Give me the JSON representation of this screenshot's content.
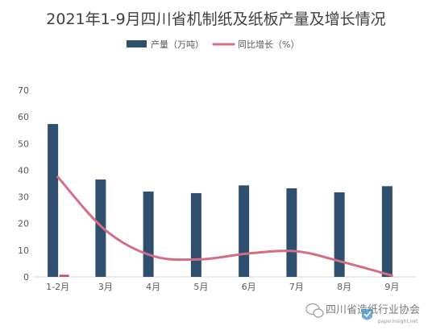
{
  "chart_data": {
    "type": "bar",
    "title": "2021年1-9月四川省机制纸及纸板产量及增长情况",
    "categories": [
      "1-2月",
      "3月",
      "4月",
      "5月",
      "6月",
      "7月",
      "8月",
      "9月"
    ],
    "ylim": [
      0,
      70
    ],
    "yticks": [
      0,
      10,
      20,
      30,
      40,
      50,
      60,
      70
    ],
    "grid": false,
    "legend_position": "top",
    "series": [
      {
        "name": "产量（万吨）",
        "kind": "bar",
        "color": "#2e4f6e",
        "values": [
          57.3,
          36.5,
          32.0,
          31.4,
          34.3,
          33.2,
          31.7,
          34.0
        ]
      },
      {
        "name": "同比增长（%）",
        "kind": "line",
        "smooth": true,
        "color": "#d36e84",
        "values": [
          37.5,
          17.5,
          7.8,
          6.6,
          8.8,
          9.6,
          5.4,
          0.5
        ]
      }
    ],
    "small_marker": {
      "category": "1-2月",
      "value": 0.8,
      "color": "#c0506a"
    }
  },
  "watermark": {
    "text": "四川省造纸行业协会",
    "url": "paperinsight.net",
    "icon": "wechat-icon"
  }
}
